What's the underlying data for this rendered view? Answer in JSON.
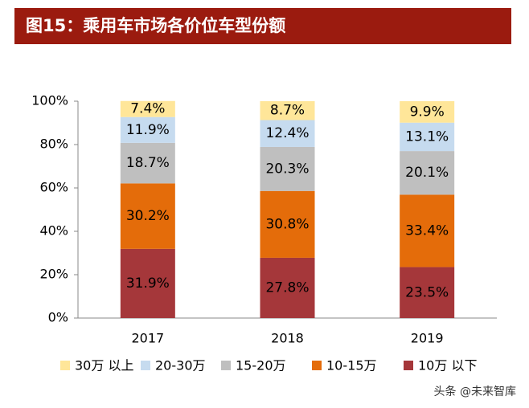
{
  "chart_data": {
    "type": "stacked_bar",
    "title": "图15：乘用车市场各价位车型份额",
    "categories": [
      "2017",
      "2018",
      "2019"
    ],
    "series": [
      {
        "name": "30万 以上",
        "color": "#ffe699",
        "values": [
          7.4,
          8.7,
          9.9
        ],
        "value_labels": [
          "7.4%",
          "8.7%",
          "9.9%"
        ]
      },
      {
        "name": "20-30万",
        "color": "#c6dbef",
        "values": [
          11.9,
          12.4,
          13.1
        ],
        "value_labels": [
          "11.9%",
          "12.4%",
          "13.1%"
        ]
      },
      {
        "name": "15-20万",
        "color": "#bfbfbf",
        "values": [
          18.7,
          20.3,
          20.1
        ],
        "value_labels": [
          "18.7%",
          "20.3%",
          "20.1%"
        ]
      },
      {
        "name": "10-15万",
        "color": "#e46c0a",
        "values": [
          30.2,
          30.8,
          33.4
        ],
        "value_labels": [
          "30.2%",
          "30.8%",
          "33.4%"
        ]
      },
      {
        "name": "10万 以下",
        "color": "#a5373a",
        "values": [
          31.9,
          27.8,
          23.5
        ],
        "value_labels": [
          "31.9%",
          "27.8%",
          "23.5%"
        ]
      }
    ],
    "ylim": [
      0,
      100
    ],
    "yticks": [
      {
        "value": 0,
        "label": "0%"
      },
      {
        "value": 20,
        "label": "20%"
      },
      {
        "value": 40,
        "label": "40%"
      },
      {
        "value": 60,
        "label": "60%"
      },
      {
        "value": 80,
        "label": "80%"
      },
      {
        "value": 100,
        "label": "100%"
      }
    ],
    "legend": "bottom"
  },
  "watermark": "头条 @未来智库"
}
